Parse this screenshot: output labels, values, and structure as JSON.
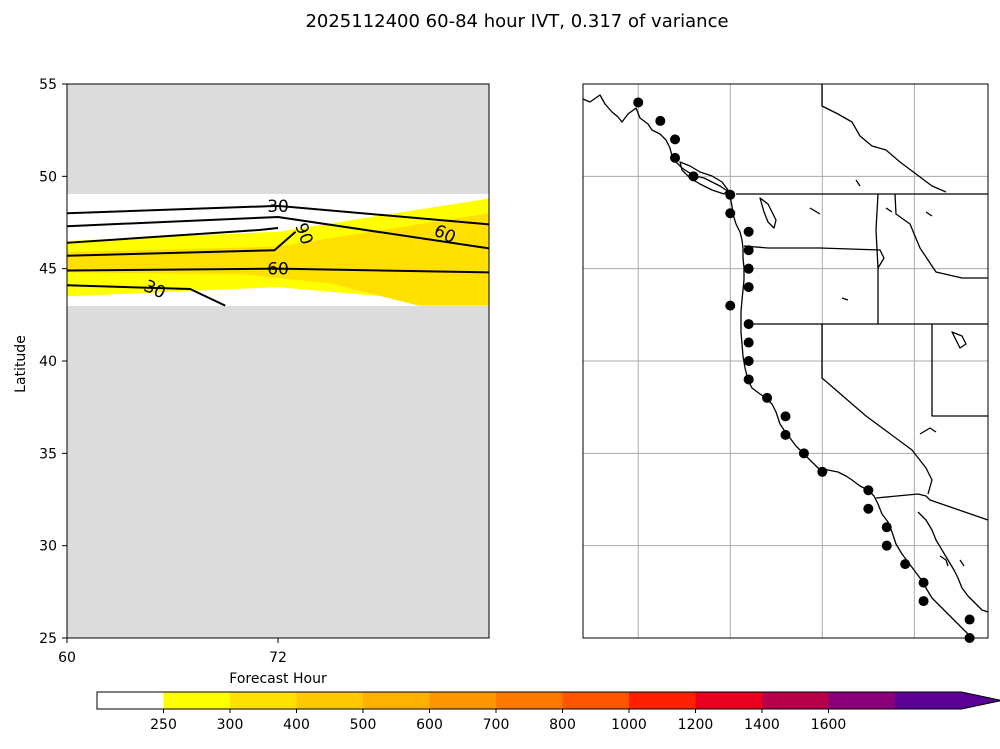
{
  "title": "2025112400 60-84 hour IVT, 0.317 of variance",
  "chart_data": [
    {
      "type": "heatmap",
      "panel": "hovmoller",
      "xlabel": "Forecast Hour",
      "ylabel": "Latitude",
      "xlim": [
        60,
        84
      ],
      "ylim": [
        25,
        55
      ],
      "xticks": [
        60,
        72
      ],
      "yticks": [
        25,
        30,
        35,
        40,
        45,
        50,
        55
      ],
      "data_lat_range": [
        43,
        49
      ],
      "missing_color": "#dcdcdc",
      "fill_regions": [
        {
          "level": "250-300",
          "color": "#ffff00",
          "polygon": [
            [
              60,
              46.5
            ],
            [
              72,
              47
            ],
            [
              84,
              48.8
            ],
            [
              84,
              43
            ],
            [
              72,
              44
            ],
            [
              60,
              43.5
            ]
          ]
        },
        {
          "level": "300-400",
          "color": "#ffe000",
          "polygon": [
            [
              60,
              45.9
            ],
            [
              72,
              46.2
            ],
            [
              84,
              48
            ],
            [
              84,
              43
            ],
            [
              80,
              43
            ],
            [
              75,
              44.2
            ],
            [
              70,
              44.7
            ],
            [
              60,
              44.8
            ]
          ]
        }
      ],
      "contours": [
        {
          "level": "30",
          "points": [
            [
              60,
              48
            ],
            [
              72,
              48.4
            ],
            [
              84,
              47.4
            ]
          ]
        },
        {
          "level": "60",
          "points": [
            [
              60,
              47.3
            ],
            [
              72,
              47.8
            ],
            [
              84,
              46.1
            ]
          ]
        },
        {
          "level": "90",
          "points": [
            [
              60,
              46.4
            ],
            [
              71,
              47.1
            ],
            [
              72,
              47.2
            ]
          ]
        },
        {
          "level": "",
          "points": [
            [
              60,
              45.7
            ],
            [
              71.8,
              46
            ],
            [
              73,
              47
            ]
          ]
        },
        {
          "level": "60",
          "points": [
            [
              60,
              44.9
            ],
            [
              72,
              45
            ],
            [
              84,
              44.8
            ]
          ]
        },
        {
          "level": "30",
          "points": [
            [
              60,
              44.1
            ],
            [
              67,
              43.9
            ],
            [
              69,
              43
            ]
          ]
        }
      ],
      "contour_labels": [
        {
          "text": "30",
          "x": 72,
          "y": 48.4,
          "angle": 0
        },
        {
          "text": "60",
          "x": 81.5,
          "y": 46.9,
          "angle": 25
        },
        {
          "text": "90",
          "x": 73.5,
          "y": 46.9,
          "angle": 70
        },
        {
          "text": "60",
          "x": 72,
          "y": 45,
          "angle": 0
        },
        {
          "text": "30",
          "x": 65,
          "y": 43.9,
          "angle": 25
        }
      ]
    },
    {
      "type": "scatter",
      "panel": "map",
      "xlim": [
        -135,
        -113
      ],
      "ylim": [
        25,
        55
      ],
      "grid": true,
      "grid_lon": [
        -132,
        -127,
        -122,
        -117
      ],
      "grid_lat": [
        30,
        35,
        40,
        45,
        50
      ],
      "points": [
        [
          -132,
          54
        ],
        [
          -130.8,
          53
        ],
        [
          -130,
          52
        ],
        [
          -130,
          51
        ],
        [
          -129,
          50
        ],
        [
          -127,
          49
        ],
        [
          -127,
          48
        ],
        [
          -126,
          47
        ],
        [
          -126,
          46
        ],
        [
          -126,
          45
        ],
        [
          -126,
          44
        ],
        [
          -127,
          43
        ],
        [
          -126,
          42
        ],
        [
          -126,
          41
        ],
        [
          -126,
          40
        ],
        [
          -126,
          39
        ],
        [
          -125,
          38
        ],
        [
          -124,
          37
        ],
        [
          -124,
          36
        ],
        [
          -123,
          35
        ],
        [
          -122,
          34
        ],
        [
          -119.5,
          33
        ],
        [
          -119.5,
          32
        ],
        [
          -118.5,
          31
        ],
        [
          -118.5,
          30
        ],
        [
          -117.5,
          29
        ],
        [
          -116.5,
          28
        ],
        [
          -116.5,
          27
        ],
        [
          -114,
          26
        ],
        [
          -114,
          25
        ]
      ]
    }
  ],
  "colorbar": {
    "ticks": [
      "250",
      "300",
      "400",
      "500",
      "600",
      "700",
      "800",
      "1000",
      "1200",
      "1400",
      "1600"
    ],
    "colors": [
      "#ffffff",
      "#ffff00",
      "#ffe000",
      "#ffc800",
      "#ffb000",
      "#ff9600",
      "#ff7800",
      "#ff5500",
      "#ff2000",
      "#e8001e",
      "#b8004a",
      "#8a0078",
      "#5a0096"
    ]
  }
}
